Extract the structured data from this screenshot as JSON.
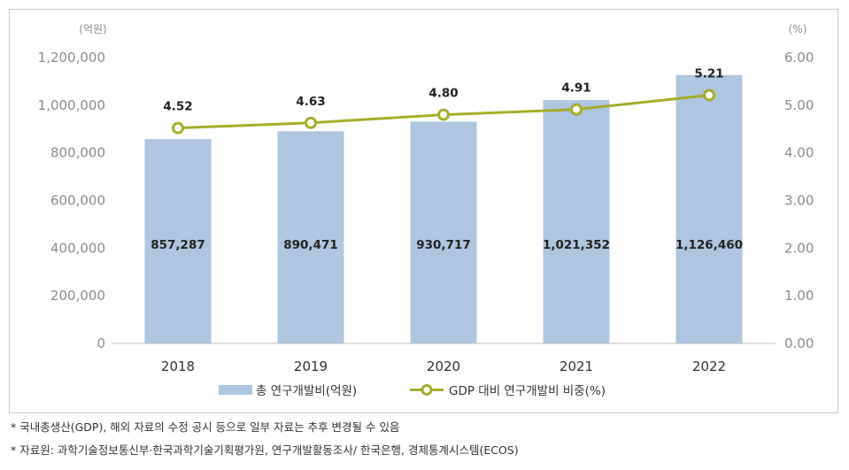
{
  "chart_data": {
    "type": "bar",
    "categories": [
      "2018",
      "2019",
      "2020",
      "2021",
      "2022"
    ],
    "series": [
      {
        "name": "총 연구개발비(억원)",
        "type": "bar",
        "axis": "left",
        "values": [
          857287,
          890471,
          930717,
          1021352,
          1126460
        ],
        "labels": [
          "857,287",
          "890,471",
          "930,717",
          "1,021,352",
          "1,126,460"
        ]
      },
      {
        "name": "GDP 대비 연구개발비 비중(%)",
        "type": "line",
        "axis": "right",
        "values": [
          4.52,
          4.63,
          4.8,
          4.91,
          5.21
        ],
        "labels": [
          "4.52",
          "4.63",
          "4.80",
          "4.91",
          "5.21"
        ]
      }
    ],
    "left_unit": "(억원)",
    "right_unit": "(%)",
    "ylim_left": [
      0,
      1200000
    ],
    "ylim_right": [
      0,
      6
    ],
    "left_ticks": [
      "0",
      "200,000",
      "400,000",
      "600,000",
      "800,000",
      "1,000,000",
      "1,200,000"
    ],
    "right_ticks": [
      "0.00",
      "1.00",
      "2.00",
      "3.00",
      "4.00",
      "5.00",
      "6.00"
    ],
    "legend_position": "bottom",
    "colors": {
      "bar": "#aec6e0",
      "line": "#a6ad2b",
      "marker_fill": "#ffffff",
      "axis": "#bfbfbf"
    }
  },
  "footnotes": [
    "*  국내총생산(GDP), 해외 자료의 수정 공시 등으로 일부 자료는 추후 변경될 수 있음",
    "*  자료원: 과학기술정보통신부·한국과학기술기획평가원, 연구개발활동조사/ 한국은행, 경제통계시스템(ECOS)"
  ]
}
